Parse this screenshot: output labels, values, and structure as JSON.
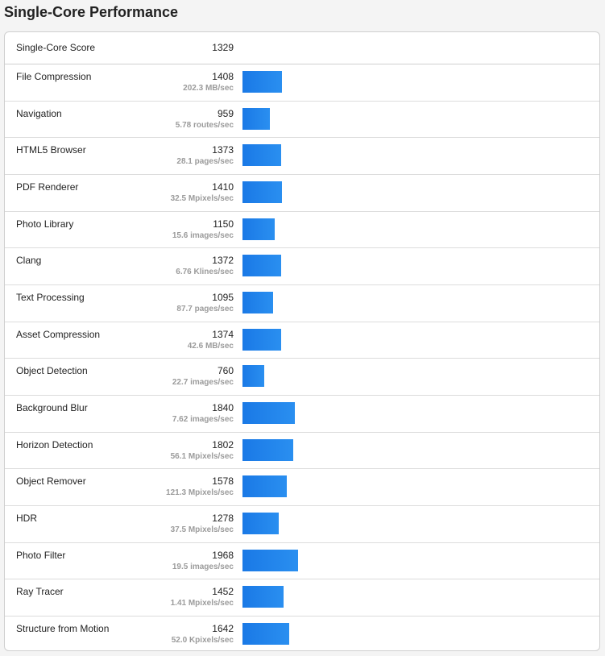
{
  "section": {
    "title": "Single-Core Performance"
  },
  "summary": {
    "label": "Single-Core Score",
    "score": "1329"
  },
  "bar_scale_max": 1968,
  "benchmarks": [
    {
      "name": "File Compression",
      "score": 1408,
      "unit": "202.3 MB/sec"
    },
    {
      "name": "Navigation",
      "score": 959,
      "unit": "5.78 routes/sec"
    },
    {
      "name": "HTML5 Browser",
      "score": 1373,
      "unit": "28.1 pages/sec"
    },
    {
      "name": "PDF Renderer",
      "score": 1410,
      "unit": "32.5 Mpixels/sec"
    },
    {
      "name": "Photo Library",
      "score": 1150,
      "unit": "15.6 images/sec"
    },
    {
      "name": "Clang",
      "score": 1372,
      "unit": "6.76 Klines/sec"
    },
    {
      "name": "Text Processing",
      "score": 1095,
      "unit": "87.7 pages/sec"
    },
    {
      "name": "Asset Compression",
      "score": 1374,
      "unit": "42.6 MB/sec"
    },
    {
      "name": "Object Detection",
      "score": 760,
      "unit": "22.7 images/sec"
    },
    {
      "name": "Background Blur",
      "score": 1840,
      "unit": "7.62 images/sec"
    },
    {
      "name": "Horizon Detection",
      "score": 1802,
      "unit": "56.1 Mpixels/sec"
    },
    {
      "name": "Object Remover",
      "score": 1578,
      "unit": "121.3 Mpixels/sec"
    },
    {
      "name": "HDR",
      "score": 1278,
      "unit": "37.5 Mpixels/sec"
    },
    {
      "name": "Photo Filter",
      "score": 1968,
      "unit": "19.5 images/sec"
    },
    {
      "name": "Ray Tracer",
      "score": 1452,
      "unit": "1.41 Mpixels/sec"
    },
    {
      "name": "Structure from Motion",
      "score": 1642,
      "unit": "52.0 Kpixels/sec"
    }
  ],
  "colors": {
    "bar": "#1a79e6",
    "bar_light": "#2a8ff0",
    "unit_text": "#9b9b9b"
  }
}
